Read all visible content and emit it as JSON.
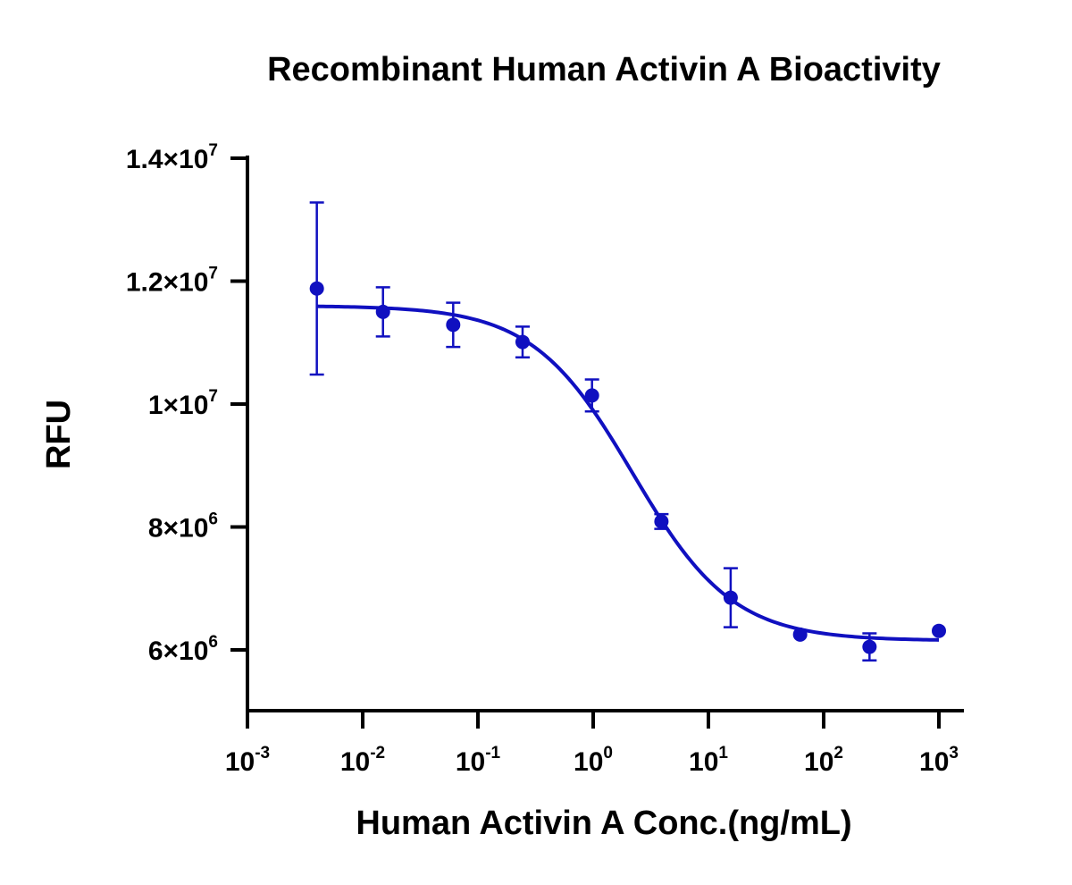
{
  "chart_data": {
    "type": "scatter",
    "title": "Recombinant Human Activin A Bioactivity",
    "xlabel": "Human Activin A Conc.(ng/mL)",
    "ylabel": "RFU",
    "x_scale": "log",
    "xlim": [
      0.001,
      1000
    ],
    "ylim": [
      5000000,
      14000000
    ],
    "x_ticks": [
      {
        "value": 0.001,
        "base": "10",
        "exp": "-3"
      },
      {
        "value": 0.01,
        "base": "10",
        "exp": "-2"
      },
      {
        "value": 0.1,
        "base": "10",
        "exp": "-1"
      },
      {
        "value": 1,
        "base": "10",
        "exp": "0"
      },
      {
        "value": 10,
        "base": "10",
        "exp": "1"
      },
      {
        "value": 100,
        "base": "10",
        "exp": "2"
      },
      {
        "value": 1000,
        "base": "10",
        "exp": "3"
      }
    ],
    "y_ticks": [
      {
        "value": 6000000,
        "mantissa": "6",
        "exp": "6"
      },
      {
        "value": 8000000,
        "mantissa": "8",
        "exp": "6"
      },
      {
        "value": 10000000,
        "mantissa": "1",
        "exp": "7"
      },
      {
        "value": 12000000,
        "mantissa": "1.2",
        "exp": "7"
      },
      {
        "value": 14000000,
        "mantissa": "1.4",
        "exp": "7"
      }
    ],
    "grid": false,
    "color": "#1010c0",
    "points": [
      {
        "x": 0.004,
        "y": 11880000,
        "err": 1400000
      },
      {
        "x": 0.015,
        "y": 11500000,
        "err": 400000
      },
      {
        "x": 0.061,
        "y": 11290000,
        "err": 360000
      },
      {
        "x": 0.244,
        "y": 11010000,
        "err": 250000
      },
      {
        "x": 0.977,
        "y": 10140000,
        "err": 260000
      },
      {
        "x": 3.91,
        "y": 8090000,
        "err": 120000
      },
      {
        "x": 15.6,
        "y": 6850000,
        "err": 480000
      },
      {
        "x": 62.5,
        "y": 6250000,
        "err": 0
      },
      {
        "x": 250,
        "y": 6050000,
        "err": 220000
      },
      {
        "x": 1000,
        "y": 6310000,
        "err": 0
      }
    ],
    "fit_curve": {
      "type": "4PL",
      "top": 11600000,
      "bottom": 6150000,
      "ec50": 2.2,
      "hill": 1.0
    }
  }
}
